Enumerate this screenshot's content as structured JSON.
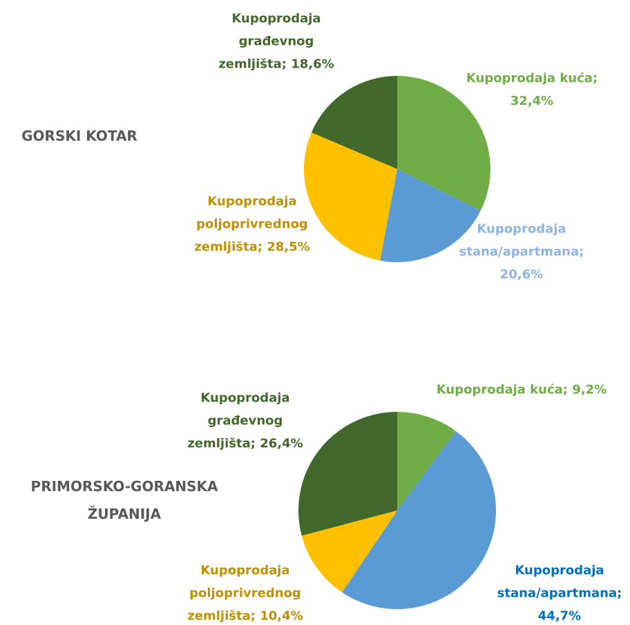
{
  "chart_data": [
    {
      "type": "pie",
      "title": "GORSKI KOTAR",
      "categories": [
        "Kupoprodaja kuća",
        "Kupoprodaja stana/apartmana",
        "Kupoprodaja poljoprivrednog zemljišta",
        "Kupoprodaja građevnog zemljišta"
      ],
      "values": [
        32.4,
        20.6,
        28.5,
        18.6
      ],
      "value_labels": [
        "32,4%",
        "20,6%",
        "28,5%",
        "18,6%"
      ],
      "label_separator": ";",
      "colors": [
        "#70ad47",
        "#5b9bd5",
        "#ffc000",
        "#43682b"
      ],
      "label_colors": [
        "#70ad47",
        "#8eb4e3",
        "#bf9000",
        "#43682b"
      ]
    },
    {
      "type": "pie",
      "title": "PRIMORSKO-GORANSKA ŽUPANIJA",
      "categories": [
        "Kupoprodaja kuća",
        "Kupoprodaja stana/apartmana",
        "Kupoprodaja poljoprivrednog zemljišta",
        "Kupoprodaja građevnog zemljišta"
      ],
      "values": [
        9.2,
        44.7,
        10.4,
        26.4
      ],
      "value_labels": [
        "9,2%",
        "44,7%",
        "10,4%",
        "26,4%"
      ],
      "label_separator": ";",
      "colors": [
        "#70ad47",
        "#5b9bd5",
        "#ffc000",
        "#43682b"
      ],
      "label_colors": [
        "#70ad47",
        "#0070c0",
        "#bf9000",
        "#43682b"
      ]
    }
  ]
}
